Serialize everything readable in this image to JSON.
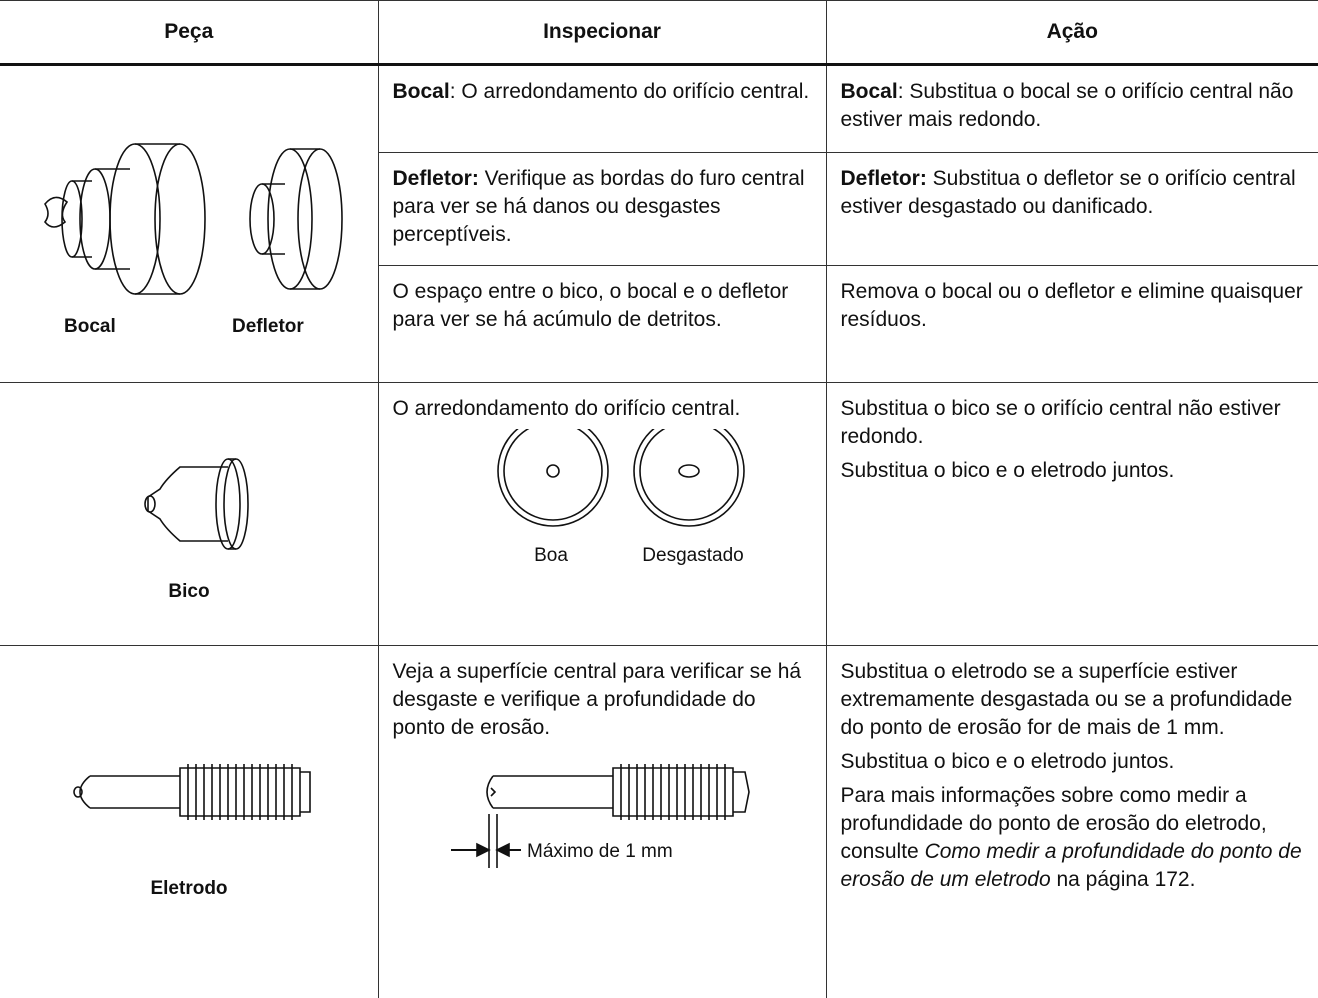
{
  "table": {
    "header": [
      "Peça",
      "Inspecionar",
      "Ação"
    ],
    "rows": [
      {
        "part_labels": [
          "Bocal",
          "Defletor"
        ],
        "checks": [
          {
            "inspect": [
              [
                {
                  "text": "Bocal",
                  "style": "bold"
                },
                {
                  "text": ": O arredondamento do orifício central."
                }
              ]
            ],
            "action": [
              [
                {
                  "text": "Bocal",
                  "style": "bold"
                },
                {
                  "text": ": Substitua o bocal se o orifício central não estiver mais redondo."
                }
              ]
            ]
          },
          {
            "inspect": [
              [
                {
                  "text": "Defletor:",
                  "style": "bold"
                },
                {
                  "text": " Verifique as bordas do furo central para ver se há danos ou desgastes perceptíveis."
                }
              ]
            ],
            "action": [
              [
                {
                  "text": "Defletor:",
                  "style": "bold"
                },
                {
                  "text": " Substitua o defletor se o orifício central estiver desgastado ou danificado."
                }
              ]
            ]
          },
          {
            "inspect": [
              [
                {
                  "text": "O espaço entre o bico, o bocal e o defletor para ver se há acúmulo de detritos."
                }
              ]
            ],
            "action": [
              [
                {
                  "text": "Remova o bocal ou o defletor e elimine quaisquer resíduos."
                }
              ]
            ]
          }
        ]
      },
      {
        "part_labels": [
          "Bico"
        ],
        "checks": [
          {
            "inspect": [
              [
                {
                  "text": "O arredondamento do orifício central."
                }
              ]
            ],
            "figure_labels": [
              "Boa",
              "Desgastado"
            ],
            "action": [
              [
                {
                  "text": "Substitua o bico se o orifício central não estiver redondo."
                }
              ],
              [
                {
                  "text": "Substitua o bico e o eletrodo juntos."
                }
              ]
            ]
          }
        ]
      },
      {
        "part_labels": [
          "Eletrodo"
        ],
        "checks": [
          {
            "inspect": [
              [
                {
                  "text": "Veja a superfície central para verificar se há desgaste e verifique a profundidade do ponto de erosão."
                }
              ]
            ],
            "figure_labels": [
              "Máximo de 1 mm"
            ],
            "action": [
              [
                {
                  "text": "Substitua o eletrodo se a superfície estiver extremamente desgastada ou se a profundidade do ponto de erosão for de mais de 1 mm."
                }
              ],
              [
                {
                  "text": "Substitua o bico e o eletrodo juntos."
                }
              ],
              [
                {
                  "text": "Para mais informações sobre como medir a profundidade do ponto de erosão do eletrodo, consulte "
                },
                {
                  "text": "Como medir a profundidade do ponto de erosão de um eletrodo",
                  "style": "italic"
                },
                {
                  "text": " na página 172."
                }
              ]
            ]
          }
        ]
      }
    ]
  }
}
